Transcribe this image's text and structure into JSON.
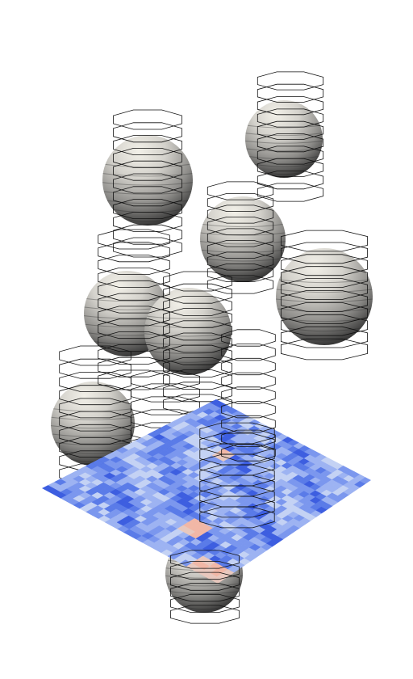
{
  "scene": {
    "background": "#ffffff",
    "sphere_highlight": "#f0eee6",
    "sphere_mid": "#b8b6b0",
    "sphere_shadow": "#3a3a3a",
    "ring_stroke": "#111111",
    "plane_colors": [
      "#3d5ee0",
      "#5a7be8",
      "#7b97ee",
      "#9db3f2",
      "#c4d2f4",
      "#e8c8be",
      "#f1b7a6"
    ],
    "sphere_count": 9,
    "ring_stack_count": 12
  }
}
